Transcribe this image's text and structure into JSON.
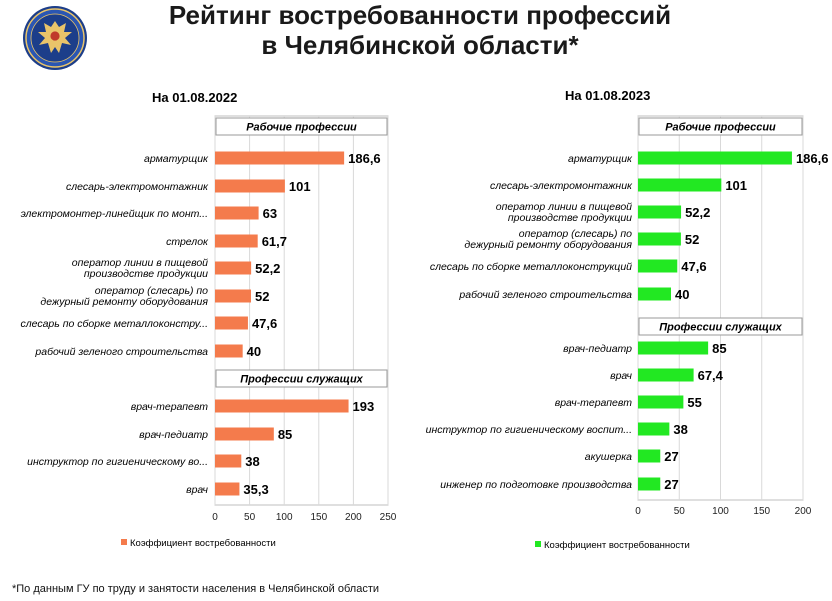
{
  "header": {
    "title_line1": "Рейтинг востребованности профессий",
    "title_line2": "в Челябинской области*"
  },
  "footnote": "*По данным ГУ по труду и занятости населения в Челябинской области",
  "chart_data": [
    {
      "type": "bar",
      "orientation": "horizontal",
      "title": "На 01.08.2022",
      "color": "#f47b4c",
      "legend": "Коэффициент востребованности",
      "legend_position": "bottom",
      "xlim": [
        0,
        250
      ],
      "xticks": [
        0,
        50,
        100,
        150,
        200,
        250
      ],
      "groups": [
        {
          "label": "Рабочие профессии",
          "categories": [
            "арматурщик",
            "слесарь-электромонтажник",
            "электромонтер-линейщик по монт...",
            "стрелок",
            "оператор линии в производстве пищевой продукции",
            "оператор (слесарь) дежурный по ремонту оборудования",
            "слесарь по сборке металлоконстру...",
            "рабочий зеленого строительства"
          ],
          "values": [
            186.6,
            101,
            63,
            61.7,
            52.2,
            52,
            47.6,
            40
          ],
          "value_labels": [
            "186,6",
            "101",
            "63",
            "61,7",
            "52,2",
            "52",
            "47,6",
            "40"
          ]
        },
        {
          "label": "Профессии служащих",
          "categories": [
            "врач-терапевт",
            "врач-педиатр",
            "инструктор по гигиеническому во...",
            "врач"
          ],
          "values": [
            193,
            85,
            38,
            35.3
          ],
          "value_labels": [
            "193",
            "85",
            "38",
            "35,3"
          ]
        }
      ]
    },
    {
      "type": "bar",
      "orientation": "horizontal",
      "title": "На 01.08.2023",
      "color": "#22e822",
      "legend": "Коэффициент востребованности",
      "legend_position": "bottom",
      "xlim": [
        0,
        200
      ],
      "xticks": [
        0,
        50,
        100,
        150,
        200
      ],
      "groups": [
        {
          "label": "Рабочие профессии",
          "categories": [
            "арматурщик",
            "слесарь-электромонтажник",
            "оператор линии в производстве пищевой продукции",
            "оператор (слесарь) дежурный по ремонту оборудования",
            "слесарь по сборке металлоконструкций",
            "рабочий зеленого строительства"
          ],
          "values": [
            186.6,
            101,
            52.2,
            52,
            47.6,
            40
          ],
          "value_labels": [
            "186,6",
            "101",
            "52,2",
            "52",
            "47,6",
            "40"
          ]
        },
        {
          "label": "Профессии служащих",
          "categories": [
            "врач-педиатр",
            "врач",
            "врач-терапевт",
            "инструктор по гигиеническому воспит...",
            "акушерка",
            "инженер по подготовке производства"
          ],
          "values": [
            85,
            67.4,
            55,
            38,
            27,
            27
          ],
          "value_labels": [
            "85",
            "67,4",
            "55",
            "38",
            "27",
            "27"
          ]
        }
      ]
    }
  ]
}
